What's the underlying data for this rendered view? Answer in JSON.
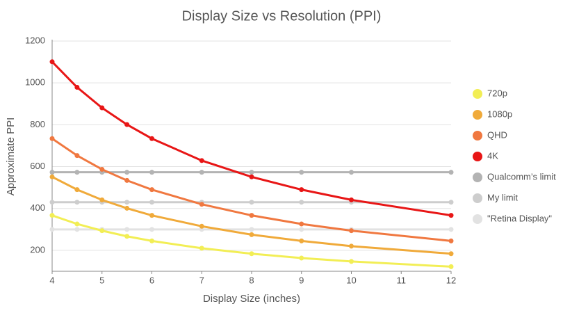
{
  "chart_data": {
    "type": "line",
    "title": "Display Size vs Resolution (PPI)",
    "x_label": "Display Size (inches)",
    "y_label": "Approximate PPI",
    "x": [
      4,
      4.5,
      5,
      5.5,
      6,
      7,
      8,
      9,
      10,
      12
    ],
    "xlim": [
      4,
      12
    ],
    "xticks": [
      4,
      5,
      6,
      7,
      8,
      9,
      10,
      11,
      12
    ],
    "ylim": [
      100,
      1200
    ],
    "yticks": [
      200,
      400,
      600,
      800,
      1000,
      1200
    ],
    "grid": true,
    "legend": "right",
    "series": [
      {
        "name": "720p",
        "color": "#f2ee55",
        "values": [
          367,
          326,
          294,
          267,
          245,
          210,
          184,
          163,
          147,
          122
        ]
      },
      {
        "name": "1080p",
        "color": "#f0aa3a",
        "values": [
          551,
          490,
          441,
          401,
          367,
          315,
          275,
          245,
          220,
          184
        ]
      },
      {
        "name": "QHD",
        "color": "#f07840",
        "values": [
          734,
          653,
          587,
          534,
          490,
          420,
          367,
          326,
          294,
          245
        ]
      },
      {
        "name": "4K",
        "color": "#e81616",
        "values": [
          1101,
          979,
          881,
          801,
          734,
          629,
          551,
          490,
          441,
          367
        ]
      },
      {
        "name": "Qualcomm’s limit",
        "color": "#b3b3b3",
        "values": [
          573,
          573,
          573,
          573,
          573,
          573,
          573,
          573,
          573,
          573
        ]
      },
      {
        "name": "My limit",
        "color": "#cdcdcd",
        "values": [
          430,
          430,
          430,
          430,
          430,
          430,
          430,
          430,
          430,
          430
        ]
      },
      {
        "name": "\"Retina Display\"",
        "color": "#e2e2e2",
        "values": [
          300,
          300,
          300,
          300,
          300,
          300,
          300,
          300,
          300,
          300
        ]
      }
    ]
  }
}
